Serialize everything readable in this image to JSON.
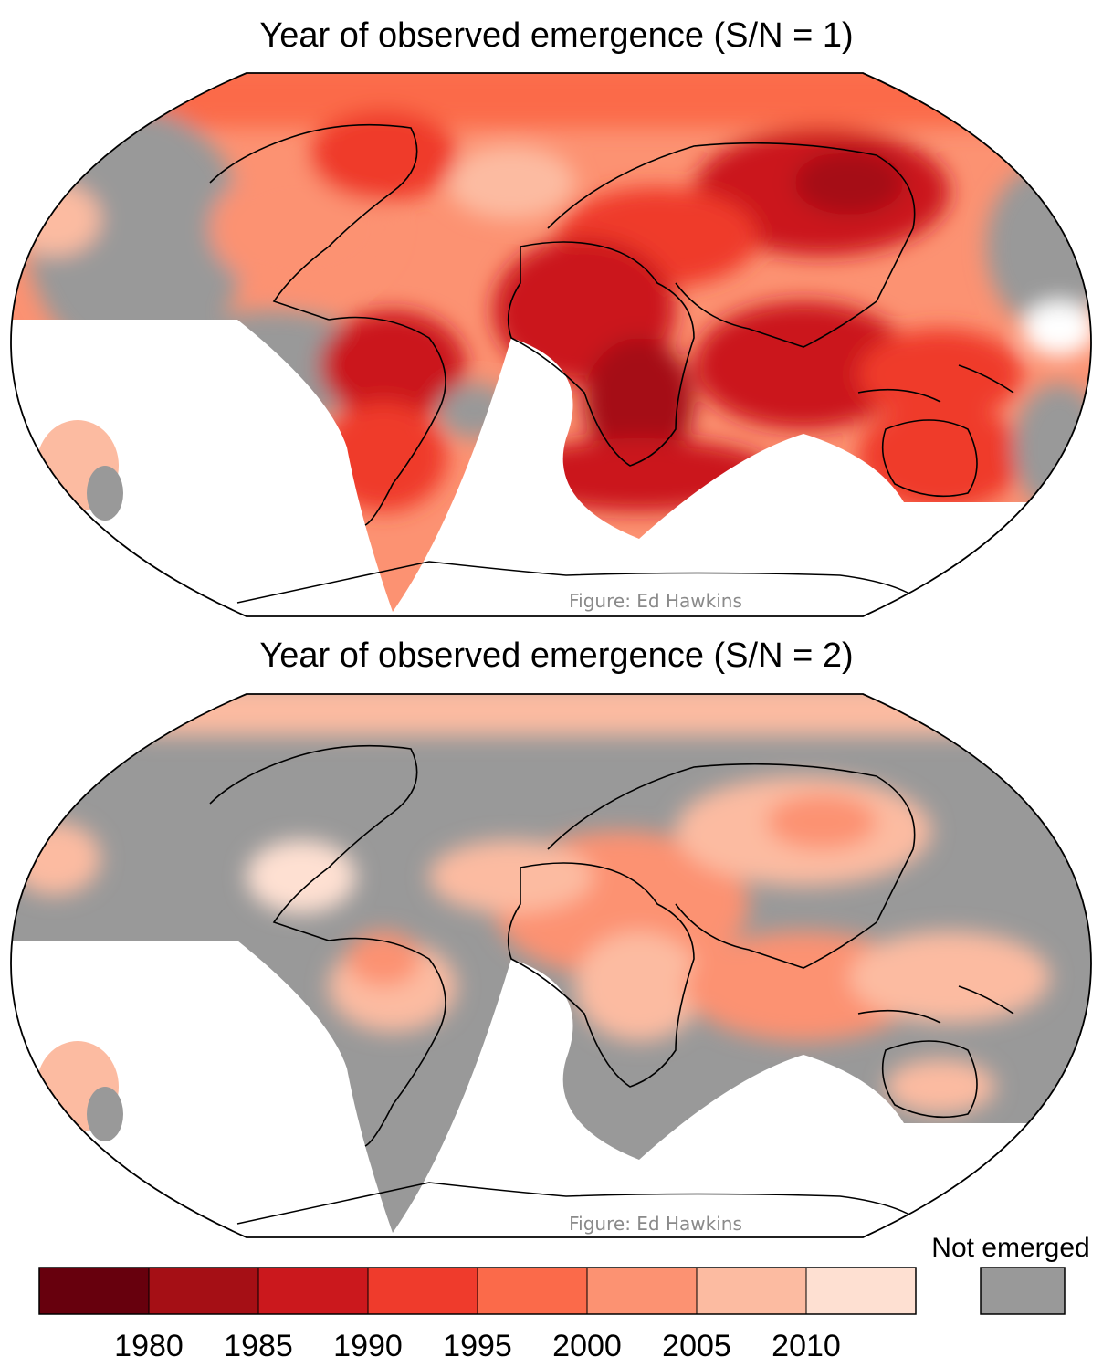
{
  "figure": {
    "panels": [
      {
        "title": "Year of observed emergence (S/N = 1)",
        "credit": "Figure: Ed Hawkins"
      },
      {
        "title": "Year of observed emergence (S/N = 2)",
        "credit": "Figure: Ed Hawkins"
      }
    ],
    "legend": {
      "tick_labels": [
        "1980",
        "1985",
        "1990",
        "1995",
        "2000",
        "2005",
        "2010"
      ],
      "bin_colors": [
        "#67000d",
        "#a50f15",
        "#cb181d",
        "#ef3b2c",
        "#fb6a4a",
        "#fc9272",
        "#fcbba1",
        "#fee0d2"
      ],
      "not_emerged_label": "Not emerged",
      "not_emerged_color": "#999999",
      "no_data_color": "#ffffff"
    },
    "colors": {
      "coastline": "#000000",
      "ocean_outline": "#000000"
    }
  }
}
